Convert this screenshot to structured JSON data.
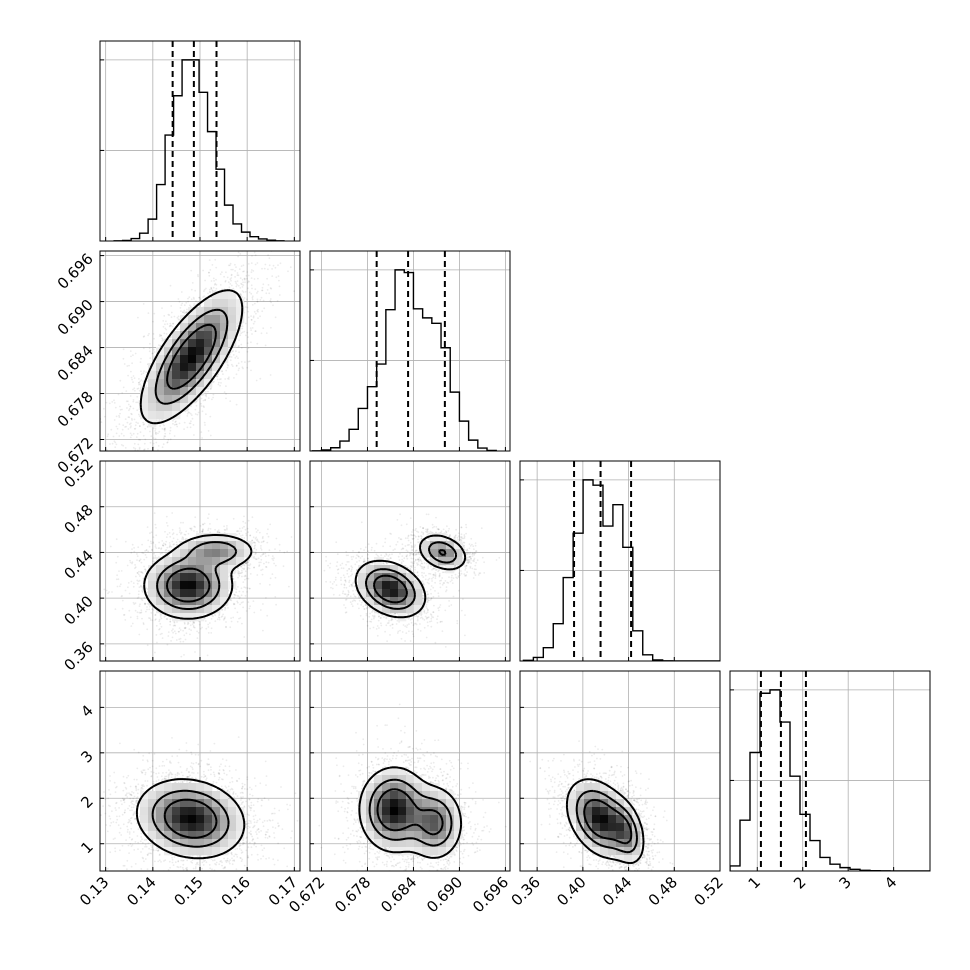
{
  "chart_data": {
    "type": "corner",
    "n_params": 4,
    "params": [
      {
        "ticks": [
          0.13,
          0.14,
          0.15,
          0.16,
          0.17
        ],
        "tick_labels": [
          "0.13",
          "0.14",
          "0.15",
          "0.16",
          "0.17"
        ],
        "range": [
          0.1288,
          0.1712
        ]
      },
      {
        "ticks": [
          0.672,
          0.678,
          0.684,
          0.69,
          0.696
        ],
        "tick_labels": [
          "0.672",
          "0.678",
          "0.684",
          "0.690",
          "0.696"
        ],
        "range": [
          0.6705,
          0.6966
        ]
      },
      {
        "ticks": [
          0.36,
          0.4,
          0.44,
          0.48,
          0.52
        ],
        "tick_labels": [
          "0.36",
          "0.40",
          "0.44",
          "0.48",
          "0.52"
        ],
        "range": [
          0.345,
          0.52
        ]
      },
      {
        "ticks": [
          1,
          2,
          3,
          4
        ],
        "tick_labels": [
          "1",
          "2",
          "3",
          "4"
        ],
        "range": [
          0.4,
          4.8
        ]
      }
    ],
    "histograms": [
      {
        "param": 0,
        "bin_edges_start": 0.1318,
        "bin_width": 0.0018,
        "counts": [
          1,
          3,
          14,
          46,
          128,
          330,
          620,
          850,
          1060,
          1060,
          870,
          640,
          420,
          210,
          100,
          52,
          25,
          12,
          5,
          1
        ],
        "quantiles": [
          0.1442,
          0.1487,
          0.1535
        ]
      },
      {
        "param": 1,
        "bin_edges_start": 0.6708,
        "bin_width": 0.0012,
        "counts": [
          1,
          6,
          18,
          55,
          120,
          235,
          355,
          480,
          780,
          1000,
          985,
          785,
          735,
          705,
          570,
          325,
          165,
          60,
          16,
          3
        ],
        "quantiles": [
          0.6792,
          0.6833,
          0.6881
        ]
      },
      {
        "param": 2,
        "bin_edges_start": 0.348,
        "bin_width": 0.0087,
        "counts": [
          4,
          20,
          75,
          210,
          470,
          720,
          1020,
          990,
          760,
          880,
          640,
          170,
          35,
          6,
          1,
          0,
          0,
          0,
          0,
          0
        ],
        "quantiles": [
          0.3923,
          0.4155,
          0.4422
        ]
      },
      {
        "param": 3,
        "bin_edges_start": 0.4,
        "bin_width": 0.22,
        "counts": [
          30,
          300,
          700,
          1050,
          1070,
          880,
          560,
          335,
          180,
          80,
          40,
          20,
          10,
          4,
          2,
          1,
          0,
          0,
          0,
          0
        ],
        "quantiles": [
          1.08,
          1.52,
          2.07
        ]
      }
    ],
    "pairs": [
      {
        "x": 0,
        "y": 1,
        "peaks": [
          {
            "x": 0.1482,
            "y": 0.6828,
            "sx": 0.0052,
            "sy": 0.0042,
            "w": 1.0
          }
        ],
        "rho": 0.72
      },
      {
        "x": 0,
        "y": 2,
        "peaks": [
          {
            "x": 0.1475,
            "y": 0.411,
            "sx": 0.0045,
            "sy": 0.014,
            "w": 1.0
          },
          {
            "x": 0.1535,
            "y": 0.441,
            "sx": 0.0042,
            "sy": 0.008,
            "w": 0.55
          }
        ],
        "rho": 0.0
      },
      {
        "x": 1,
        "y": 2,
        "peaks": [
          {
            "x": 0.681,
            "y": 0.408,
            "sx": 0.0022,
            "sy": 0.012,
            "w": 1.0
          },
          {
            "x": 0.6878,
            "y": 0.44,
            "sx": 0.0016,
            "sy": 0.008,
            "w": 0.65
          }
        ],
        "rho": -0.3
      },
      {
        "x": 0,
        "y": 3,
        "peaks": [
          {
            "x": 0.148,
            "y": 1.55,
            "sx": 0.0055,
            "sy": 0.42,
            "w": 1.0
          }
        ],
        "rho": -0.15
      },
      {
        "x": 1,
        "y": 3,
        "peaks": [
          {
            "x": 0.6815,
            "y": 1.75,
            "sx": 0.0022,
            "sy": 0.45,
            "w": 1.0
          },
          {
            "x": 0.6868,
            "y": 1.45,
            "sx": 0.0018,
            "sy": 0.4,
            "w": 0.7
          }
        ],
        "rho": 0.0
      },
      {
        "x": 2,
        "y": 3,
        "peaks": [
          {
            "x": 0.415,
            "y": 1.55,
            "sx": 0.014,
            "sy": 0.42,
            "w": 1.0
          },
          {
            "x": 0.438,
            "y": 1.25,
            "sx": 0.008,
            "sy": 0.35,
            "w": 0.55
          }
        ],
        "rho": -0.35
      }
    ],
    "contour_levels": [
      0.12,
      0.35,
      0.62
    ],
    "grid": true,
    "colors": {
      "points": "#000000",
      "density": "#000000",
      "lines": "#000000",
      "grid": "#b0b0b0"
    }
  }
}
